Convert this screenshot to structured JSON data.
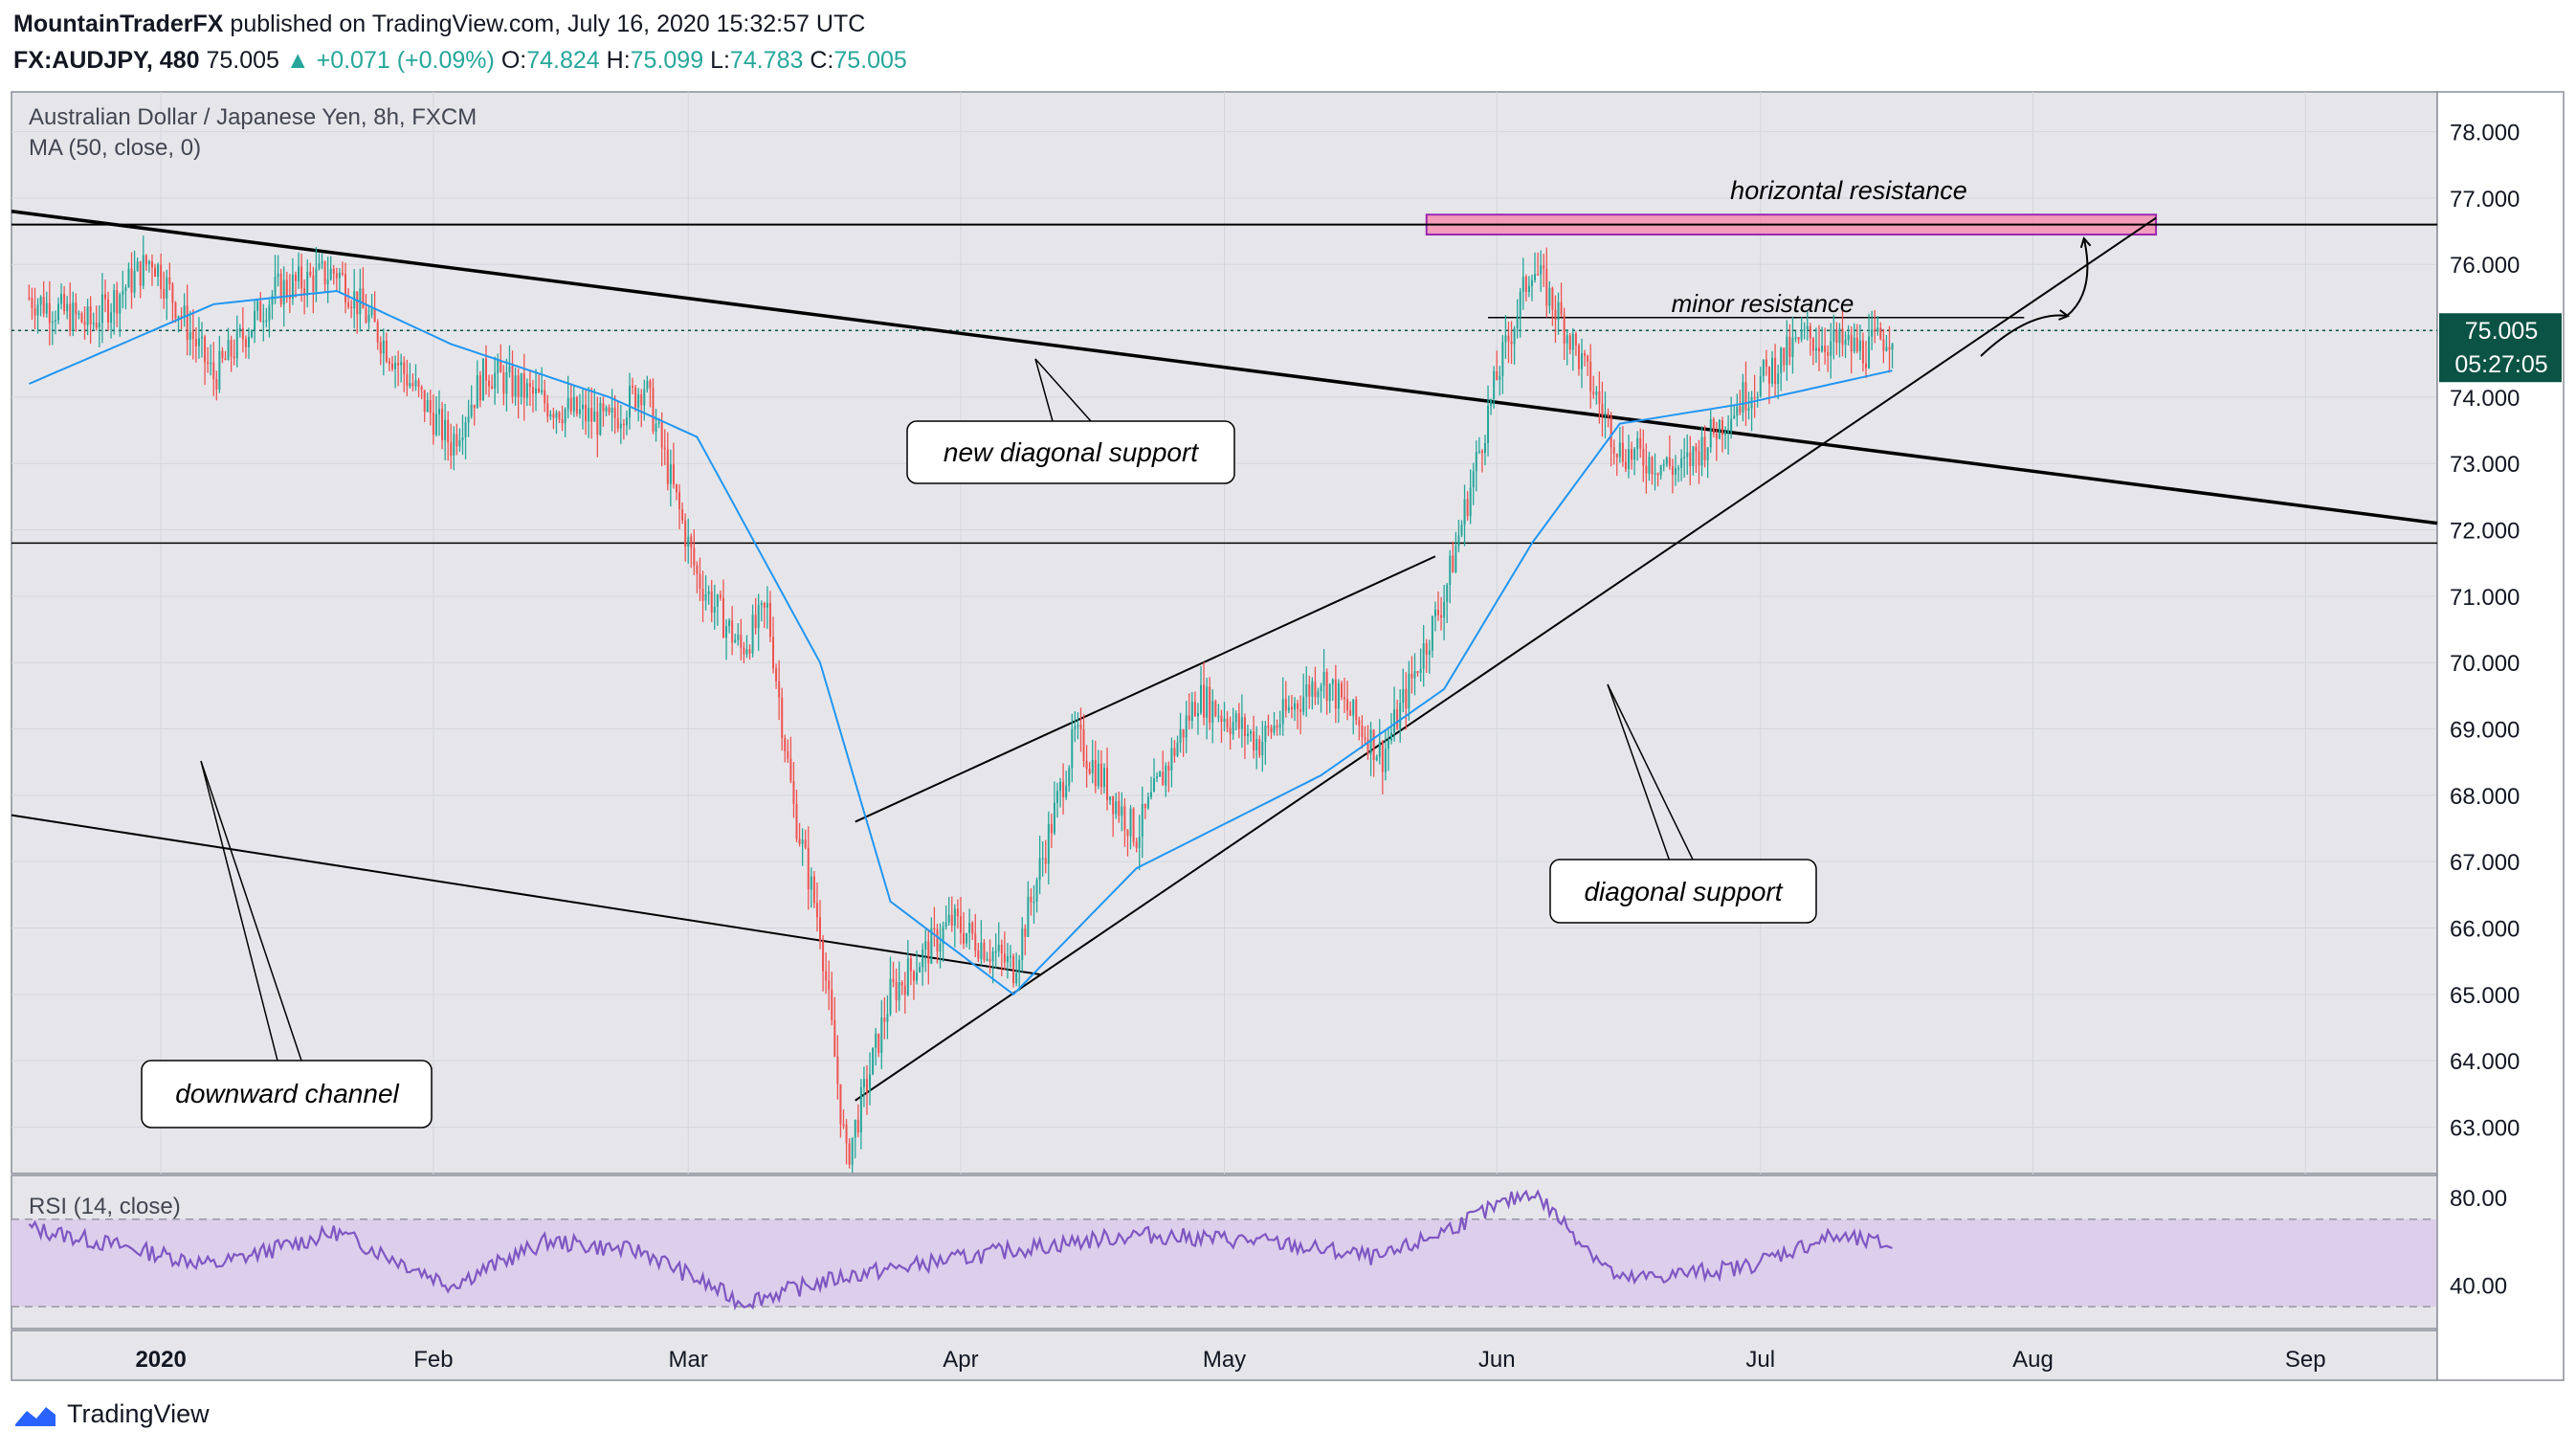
{
  "header": {
    "author": "MountainTraderFX",
    "published_text": "published on TradingView.com, July 16, 2020 15:32:57 UTC",
    "symbol": "FX:AUDJPY, 480",
    "last": "75.005",
    "change": "+0.071 (+0.09%)",
    "open_label": "O:",
    "open": "74.824",
    "high_label": "H:",
    "high": "75.099",
    "low_label": "L:",
    "low": "74.783",
    "close_label": "C:",
    "close": "75.005"
  },
  "legend": {
    "instrument": "Australian Dollar / Japanese Yen, 8h, FXCM",
    "ma": "MA (50, close, 0)",
    "rsi": "RSI (14, close)"
  },
  "price_badge": {
    "price": "75.005",
    "countdown": "05:27:05"
  },
  "annotations": {
    "horizontal_resistance": "horizontal resistance",
    "minor_resistance": "minor resistance",
    "new_diagonal_support": "new diagonal support",
    "diagonal_support": "diagonal support",
    "downward_channel": "downward channel"
  },
  "brand": "TradingView",
  "colors": {
    "up": "#26a69a",
    "down": "#ef5350",
    "ma": "#2196f3",
    "rsi": "#7e57c2",
    "resistance_fill": "#f48fb1",
    "resistance_stroke": "#9c27b0",
    "badge": "#0b5345"
  },
  "chart_data": {
    "type": "candlestick",
    "symbol": "FX:AUDJPY",
    "interval": "8h",
    "y_axis": {
      "range": [
        62.3,
        78.6
      ],
      "ticks": [
        "78.000",
        "77.000",
        "76.000",
        "75.000",
        "74.000",
        "73.000",
        "72.000",
        "71.000",
        "70.000",
        "69.000",
        "68.000",
        "67.000",
        "66.000",
        "65.000",
        "64.000",
        "63.000"
      ]
    },
    "x_axis": {
      "ticks": [
        "2020",
        "Feb",
        "Mar",
        "Apr",
        "May",
        "Jun",
        "Jul",
        "Aug",
        "Sep"
      ]
    },
    "rsi_axis": {
      "range": [
        20,
        90
      ],
      "ticks": [
        "80.00",
        "40.00"
      ],
      "band": [
        30,
        70
      ]
    },
    "close_path": [
      [
        "2019-12-17",
        75.5
      ],
      [
        "2019-12-24",
        75.1
      ],
      [
        "2019-12-31",
        76.1
      ],
      [
        "2020-01-07",
        74.3
      ],
      [
        "2020-01-14",
        75.6
      ],
      [
        "2020-01-21",
        75.9
      ],
      [
        "2020-01-28",
        74.5
      ],
      [
        "2020-02-03",
        73.3
      ],
      [
        "2020-02-07",
        74.4
      ],
      [
        "2020-02-14",
        73.9
      ],
      [
        "2020-02-21",
        73.6
      ],
      [
        "2020-02-25",
        74.2
      ],
      [
        "2020-03-02",
        71.3
      ],
      [
        "2020-03-07",
        70.2
      ],
      [
        "2020-03-10",
        70.8
      ],
      [
        "2020-03-13",
        67.8
      ],
      [
        "2020-03-16",
        66.0
      ],
      [
        "2020-03-19",
        62.5
      ],
      [
        "2020-03-24",
        65.0
      ],
      [
        "2020-03-31",
        66.1
      ],
      [
        "2020-04-07",
        65.4
      ],
      [
        "2020-04-14",
        68.9
      ],
      [
        "2020-04-21",
        67.4
      ],
      [
        "2020-04-28",
        69.5
      ],
      [
        "2020-05-05",
        68.8
      ],
      [
        "2020-05-12",
        69.8
      ],
      [
        "2020-05-19",
        68.6
      ],
      [
        "2020-05-26",
        71.0
      ],
      [
        "2020-06-01",
        74.3
      ],
      [
        "2020-06-05",
        76.0
      ],
      [
        "2020-06-09",
        75.0
      ],
      [
        "2020-06-15",
        73.2
      ],
      [
        "2020-06-22",
        72.9
      ],
      [
        "2020-06-29",
        74.0
      ],
      [
        "2020-07-06",
        74.9
      ],
      [
        "2020-07-13",
        74.7
      ],
      [
        "2020-07-16",
        75.0
      ]
    ],
    "ma50_path": [
      [
        "2019-12-17",
        74.2
      ],
      [
        "2020-01-07",
        75.4
      ],
      [
        "2020-01-21",
        75.6
      ],
      [
        "2020-02-03",
        74.8
      ],
      [
        "2020-02-21",
        74.0
      ],
      [
        "2020-03-02",
        73.4
      ],
      [
        "2020-03-16",
        70.0
      ],
      [
        "2020-03-24",
        66.4
      ],
      [
        "2020-04-07",
        65.0
      ],
      [
        "2020-04-21",
        66.9
      ],
      [
        "2020-05-12",
        68.3
      ],
      [
        "2020-05-26",
        69.6
      ],
      [
        "2020-06-05",
        71.8
      ],
      [
        "2020-06-15",
        73.6
      ],
      [
        "2020-06-29",
        73.9
      ],
      [
        "2020-07-16",
        74.4
      ]
    ],
    "rsi_path": [
      [
        "2019-12-17",
        66
      ],
      [
        "2020-01-07",
        49
      ],
      [
        "2020-01-21",
        64
      ],
      [
        "2020-02-03",
        40
      ],
      [
        "2020-02-14",
        60
      ],
      [
        "2020-02-25",
        55
      ],
      [
        "2020-03-07",
        32
      ],
      [
        "2020-03-19",
        44
      ],
      [
        "2020-04-07",
        56
      ],
      [
        "2020-04-21",
        63
      ],
      [
        "2020-05-05",
        60
      ],
      [
        "2020-05-19",
        52
      ],
      [
        "2020-06-05",
        83
      ],
      [
        "2020-06-15",
        42
      ],
      [
        "2020-06-29",
        48
      ],
      [
        "2020-07-09",
        62
      ],
      [
        "2020-07-16",
        58
      ]
    ],
    "levels": [
      {
        "label": "horizontal resistance",
        "price": 76.6,
        "zone": [
          76.45,
          76.75
        ]
      },
      {
        "label": "minor resistance",
        "price": 75.2
      },
      {
        "label": "",
        "price": 71.8
      },
      {
        "label": "last price",
        "price": 75.005
      }
    ],
    "trendlines": [
      {
        "label": "new diagonal support",
        "from": [
          "2019-12-15",
          76.8
        ],
        "to": [
          "2020-09-16",
          72.1
        ]
      },
      {
        "label": "diagonal support",
        "from": [
          "2020-03-20",
          63.4
        ],
        "to": [
          "2020-08-15",
          76.7
        ]
      },
      {
        "label": "",
        "from": [
          "2020-03-20",
          67.6
        ],
        "to": [
          "2020-05-25",
          71.6
        ]
      },
      {
        "label": "downward channel",
        "from": [
          "2019-12-15",
          67.7
        ],
        "to": [
          "2020-04-10",
          65.3
        ]
      }
    ]
  }
}
